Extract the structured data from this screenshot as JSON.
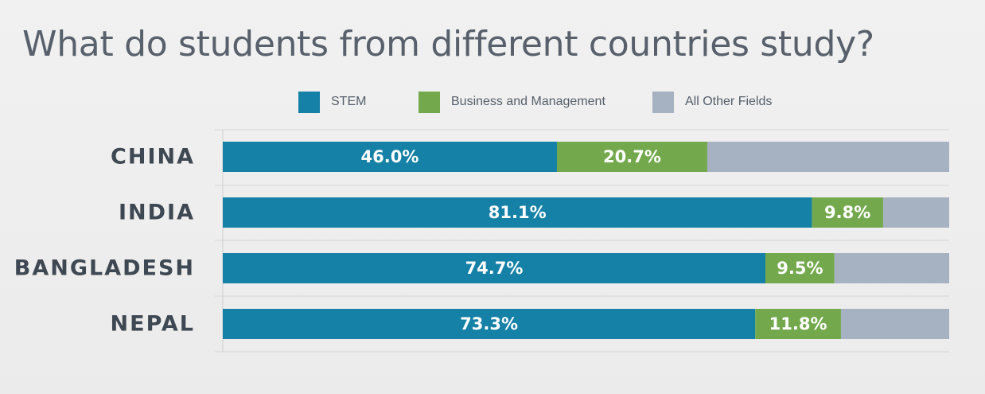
{
  "title": "What do students from different countries study?",
  "colors": {
    "stem": "#1581a7",
    "business": "#73a94c",
    "other": "#a6b1c2",
    "category_text": "#3e4853",
    "bar_text": "#ffffff"
  },
  "legend": [
    {
      "label": "STEM",
      "color": "#1581a7"
    },
    {
      "label": "Business and Management",
      "color": "#73a94c"
    },
    {
      "label": "All Other Fields",
      "color": "#a6b1c2"
    }
  ],
  "chart_data": {
    "type": "bar",
    "orientation": "horizontal",
    "stacked": true,
    "normalized_to": 100,
    "categories": [
      "CHINA",
      "INDIA",
      "BANGLADESH",
      "NEPAL"
    ],
    "series": [
      {
        "name": "STEM",
        "values": [
          46.0,
          81.1,
          74.7,
          73.3
        ],
        "labels": [
          "46.0%",
          "81.1%",
          "74.7%",
          "73.3%"
        ]
      },
      {
        "name": "Business and Management",
        "values": [
          20.7,
          9.8,
          9.5,
          11.8
        ],
        "labels": [
          "20.7%",
          "9.8%",
          "9.5%",
          "11.8%"
        ]
      },
      {
        "name": "All Other Fields",
        "values": [
          33.3,
          9.1,
          15.8,
          14.9
        ],
        "labels": [
          "",
          "",
          "",
          ""
        ]
      }
    ],
    "xlim": [
      0,
      100
    ],
    "grid": true,
    "legend_position": "top"
  }
}
